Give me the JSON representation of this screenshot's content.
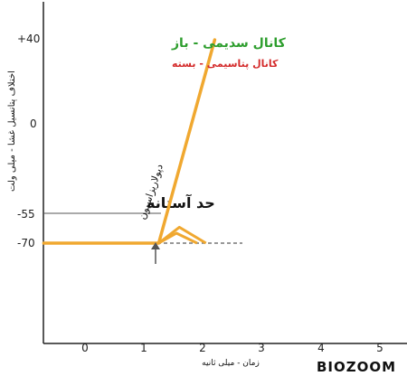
{
  "chart_data": {
    "type": "line",
    "title": "",
    "xlabel": "زمان - میلی ثانیه",
    "ylabel": "اختلاف پتانسیل غشا - میلی ولت",
    "x_ticks": [
      "0",
      "1",
      "2",
      "3",
      "4",
      "5"
    ],
    "y_ticks": [
      "+40",
      "0",
      "-55",
      "-70"
    ],
    "xlim": [
      -0.7,
      5.5
    ],
    "ylim": [
      -140,
      55
    ],
    "resting_potential": -70,
    "threshold": {
      "value": -55,
      "label": "حد آستانه"
    },
    "stimulus_time": 1.25,
    "series": [
      {
        "name": "کانال سدیمی - باز",
        "color": "#2e9e2e",
        "points": [
          [
            -0.7,
            -70
          ],
          [
            1.25,
            -70
          ],
          [
            2.2,
            40
          ]
        ]
      },
      {
        "name": "کانال پتاسیمی - بسته",
        "color": "#d42b2b",
        "points": [
          [
            -0.7,
            -70
          ],
          [
            1.25,
            -70
          ],
          [
            1.6,
            -62
          ],
          [
            2.05,
            -70
          ]
        ]
      }
    ],
    "line_color": "#f0a830",
    "annotation": "دپولاریزاسیون"
  },
  "logo_text": "BIOZOOM"
}
